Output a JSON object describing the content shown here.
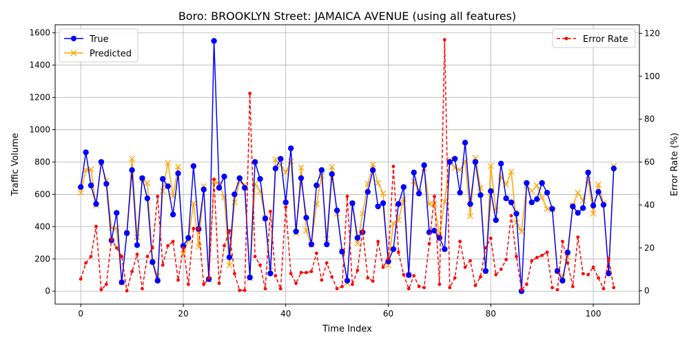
{
  "chart_data": {
    "type": "line",
    "title": "Boro: BROOKLYN Street: JAMAICA AVENUE (using all features)",
    "xlabel": "Time Index",
    "ylabel": "Traffic Volume",
    "y2label": "Error Rate (%)",
    "xlim": [
      -5,
      109
    ],
    "ylim": [
      -80,
      1650
    ],
    "y2lim": [
      -6.2,
      124
    ],
    "xticks": [
      0,
      20,
      40,
      60,
      80,
      100
    ],
    "yticks": [
      0,
      200,
      400,
      600,
      800,
      1000,
      1200,
      1400,
      1600
    ],
    "y2ticks": [
      0,
      20,
      40,
      60,
      80,
      100,
      120
    ],
    "grid": true,
    "colors": {
      "true": "#0000ff",
      "predicted": "#ffa500",
      "error": "#ff0000"
    },
    "legend_left": {
      "placement": "upper-left",
      "entries": [
        "True",
        "Predicted"
      ]
    },
    "legend_right": {
      "placement": "upper-right",
      "entries": [
        "Error Rate"
      ]
    },
    "series": [
      {
        "name": "True",
        "axis": "left",
        "values": [
          645,
          860,
          655,
          540,
          800,
          665,
          315,
          485,
          55,
          360,
          750,
          285,
          700,
          575,
          180,
          65,
          695,
          650,
          475,
          730,
          280,
          330,
          775,
          385,
          630,
          75,
          1550,
          640,
          710,
          210,
          600,
          700,
          640,
          85,
          800,
          695,
          450,
          110,
          760,
          820,
          550,
          885,
          370,
          700,
          455,
          290,
          655,
          750,
          290,
          725,
          500,
          245,
          65,
          545,
          330,
          365,
          615,
          750,
          525,
          545,
          185,
          260,
          540,
          645,
          100,
          735,
          605,
          780,
          365,
          375,
          330,
          260,
          800,
          820,
          610,
          920,
          540,
          800,
          595,
          125,
          620,
          440,
          790,
          575,
          550,
          480,
          0,
          670,
          550,
          570,
          670,
          610,
          510,
          125,
          65,
          240,
          525,
          485,
          515,
          735,
          530,
          615,
          535,
          110,
          760
        ]
      },
      {
        "name": "Predicted",
        "axis": "left",
        "values": [
          610,
          750,
          755,
          530,
          795,
          685,
          390,
          390,
          55,
          360,
          820,
          335,
          695,
          670,
          185,
          95,
          620,
          795,
          590,
          770,
          230,
          315,
          545,
          275,
          650,
          70,
          680,
          665,
          580,
          160,
          550,
          680,
          660,
          80,
          665,
          620,
          455,
          130,
          815,
          780,
          735,
          805,
          360,
          765,
          375,
          285,
          540,
          715,
          325,
          770,
          480,
          250,
          50,
          540,
          295,
          480,
          665,
          785,
          670,
          605,
          160,
          420,
          440,
          570,
          100,
          680,
          615,
          760,
          540,
          540,
          340,
          555,
          815,
          765,
          750,
          805,
          465,
          825,
          640,
          120,
          775,
          500,
          710,
          660,
          740,
          425,
          370,
          655,
          620,
          655,
          580,
          510,
          505,
          125,
          90,
          210,
          530,
          610,
          560,
          690,
          480,
          660,
          545,
          120,
          775
        ]
      },
      {
        "name": "Error Rate",
        "axis": "right",
        "values": [
          5.5,
          13,
          16,
          30,
          0.5,
          3,
          24,
          20,
          16,
          0,
          9,
          17,
          1,
          16,
          20,
          44,
          12,
          21,
          23,
          5,
          20,
          3,
          29,
          29,
          3,
          6,
          52,
          3.5,
          21,
          28,
          8,
          0.2,
          0.2,
          92,
          16,
          12,
          1,
          37,
          7,
          1,
          39,
          8,
          3.5,
          8.5,
          8.5,
          9,
          17.5,
          5,
          13,
          6.5,
          1,
          2,
          44,
          3,
          9.5,
          28,
          6,
          4.5,
          23,
          11,
          15,
          58,
          18,
          7.5,
          1,
          7,
          2,
          1.5,
          22,
          44,
          3,
          117,
          1.5,
          6,
          23,
          11,
          14,
          2.5,
          6.5,
          20,
          24.5,
          7.5,
          10,
          14.5,
          35,
          16,
          0.5,
          3,
          14,
          15.5,
          16.5,
          18,
          1.5,
          0.5,
          23,
          13,
          2,
          25,
          8,
          7.5,
          11,
          6,
          1,
          15,
          1.5
        ]
      }
    ]
  }
}
